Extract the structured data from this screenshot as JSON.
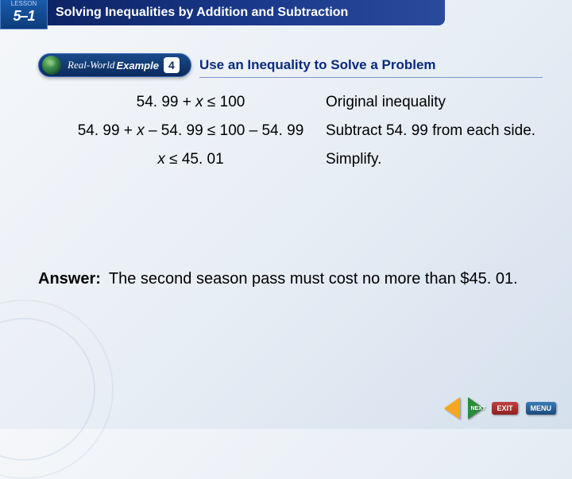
{
  "header": {
    "lesson_label": "LESSON",
    "lesson_number": "5–1",
    "title": "Solving Inequalities by Addition and Subtraction"
  },
  "example": {
    "pill_realworld": "Real-World",
    "pill_example": "Example",
    "pill_number": "4",
    "title": "Use an Inequality to Solve a Problem"
  },
  "steps": [
    {
      "eq": "54. 99 + x ≤ 100",
      "desc": "Original inequality"
    },
    {
      "eq": "54. 99 + x – 54. 99 ≤ 100 – 54. 99",
      "desc": "Subtract 54. 99 from each side."
    },
    {
      "eq": "x ≤ 45. 01",
      "desc": "Simplify."
    }
  ],
  "answer": {
    "label": "Answer:",
    "text": "The second season pass must cost no more than $45. 01."
  },
  "footer": {
    "next": "NEXT",
    "exit": "EXIT",
    "menu": "MENU"
  },
  "colors": {
    "header_bg": "#0a1f5c",
    "accent": "#1a4a8c",
    "title_text": "#0a2a7c"
  }
}
